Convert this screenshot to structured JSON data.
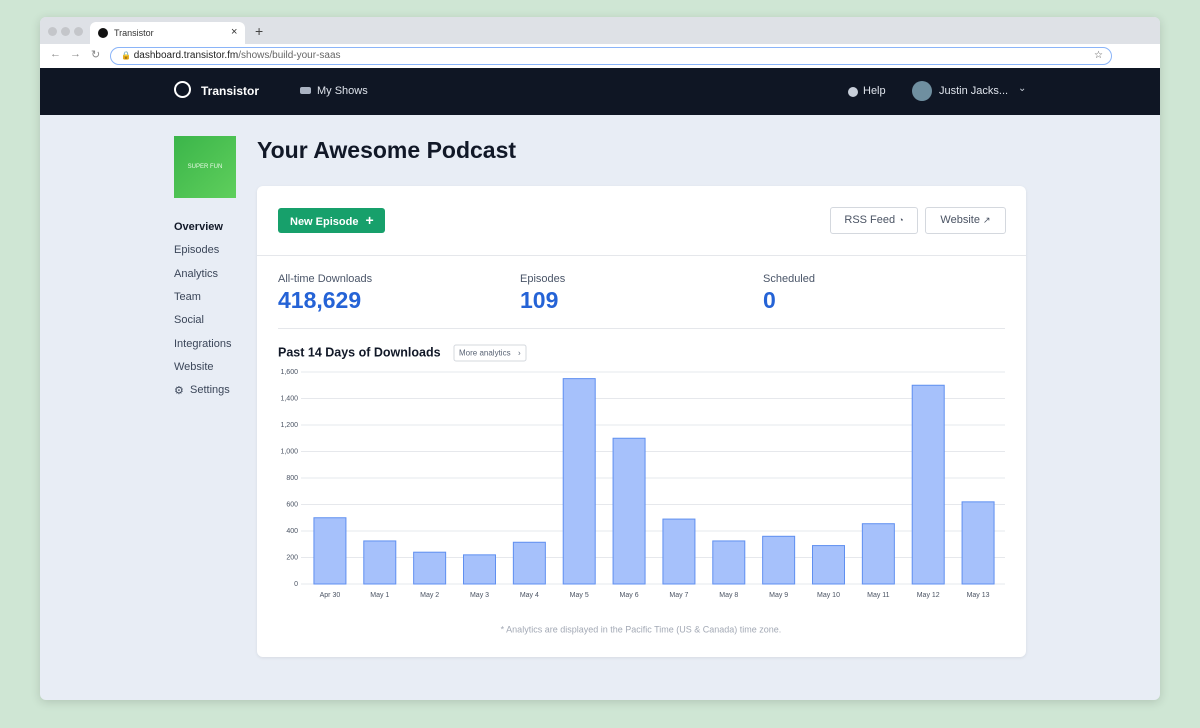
{
  "browser": {
    "tab_title": "Transistor",
    "url_host": "dashboard.transistor.fm",
    "url_path": "/shows/build-your-saas"
  },
  "nav": {
    "brand": "Transistor",
    "my_shows": "My Shows",
    "help": "Help",
    "user": "Justin Jacks..."
  },
  "sidebar": {
    "cover_text": "SUPER FUN",
    "menu": [
      "Overview",
      "Episodes",
      "Analytics",
      "Team",
      "Social",
      "Integrations",
      "Website",
      "Settings"
    ]
  },
  "header": {
    "title": "Your Awesome Podcast"
  },
  "actions": {
    "new_episode": "New Episode",
    "rss_feed": "RSS Feed",
    "website": "Website"
  },
  "stats": [
    {
      "label": "All-time Downloads",
      "value": "418,629"
    },
    {
      "label": "Episodes",
      "value": "109"
    },
    {
      "label": "Scheduled",
      "value": "0"
    }
  ],
  "chart_data": {
    "type": "bar",
    "title": "Past 14 Days of Downloads",
    "link": "More analytics",
    "categories": [
      "Apr 30",
      "May 1",
      "May 2",
      "May 3",
      "May 4",
      "May 5",
      "May 6",
      "May 7",
      "May 8",
      "May 9",
      "May 10",
      "May 11",
      "May 12",
      "May 13"
    ],
    "values": [
      500,
      325,
      240,
      220,
      315,
      1550,
      1100,
      490,
      325,
      360,
      290,
      455,
      1500,
      620
    ],
    "color": "#a6c1fb",
    "ylim": [
      0,
      1600
    ],
    "yticks": [
      0,
      200,
      400,
      600,
      800,
      {
        "value": 1000,
        "label": "1,000"
      },
      {
        "value": 1200,
        "label": "1,200"
      },
      {
        "value": 1400,
        "label": "1,400"
      },
      {
        "value": 1600,
        "label": "1,600"
      }
    ],
    "grid": true,
    "note": "* Analytics are displayed in the Pacific Time (US & Canada) time zone."
  }
}
